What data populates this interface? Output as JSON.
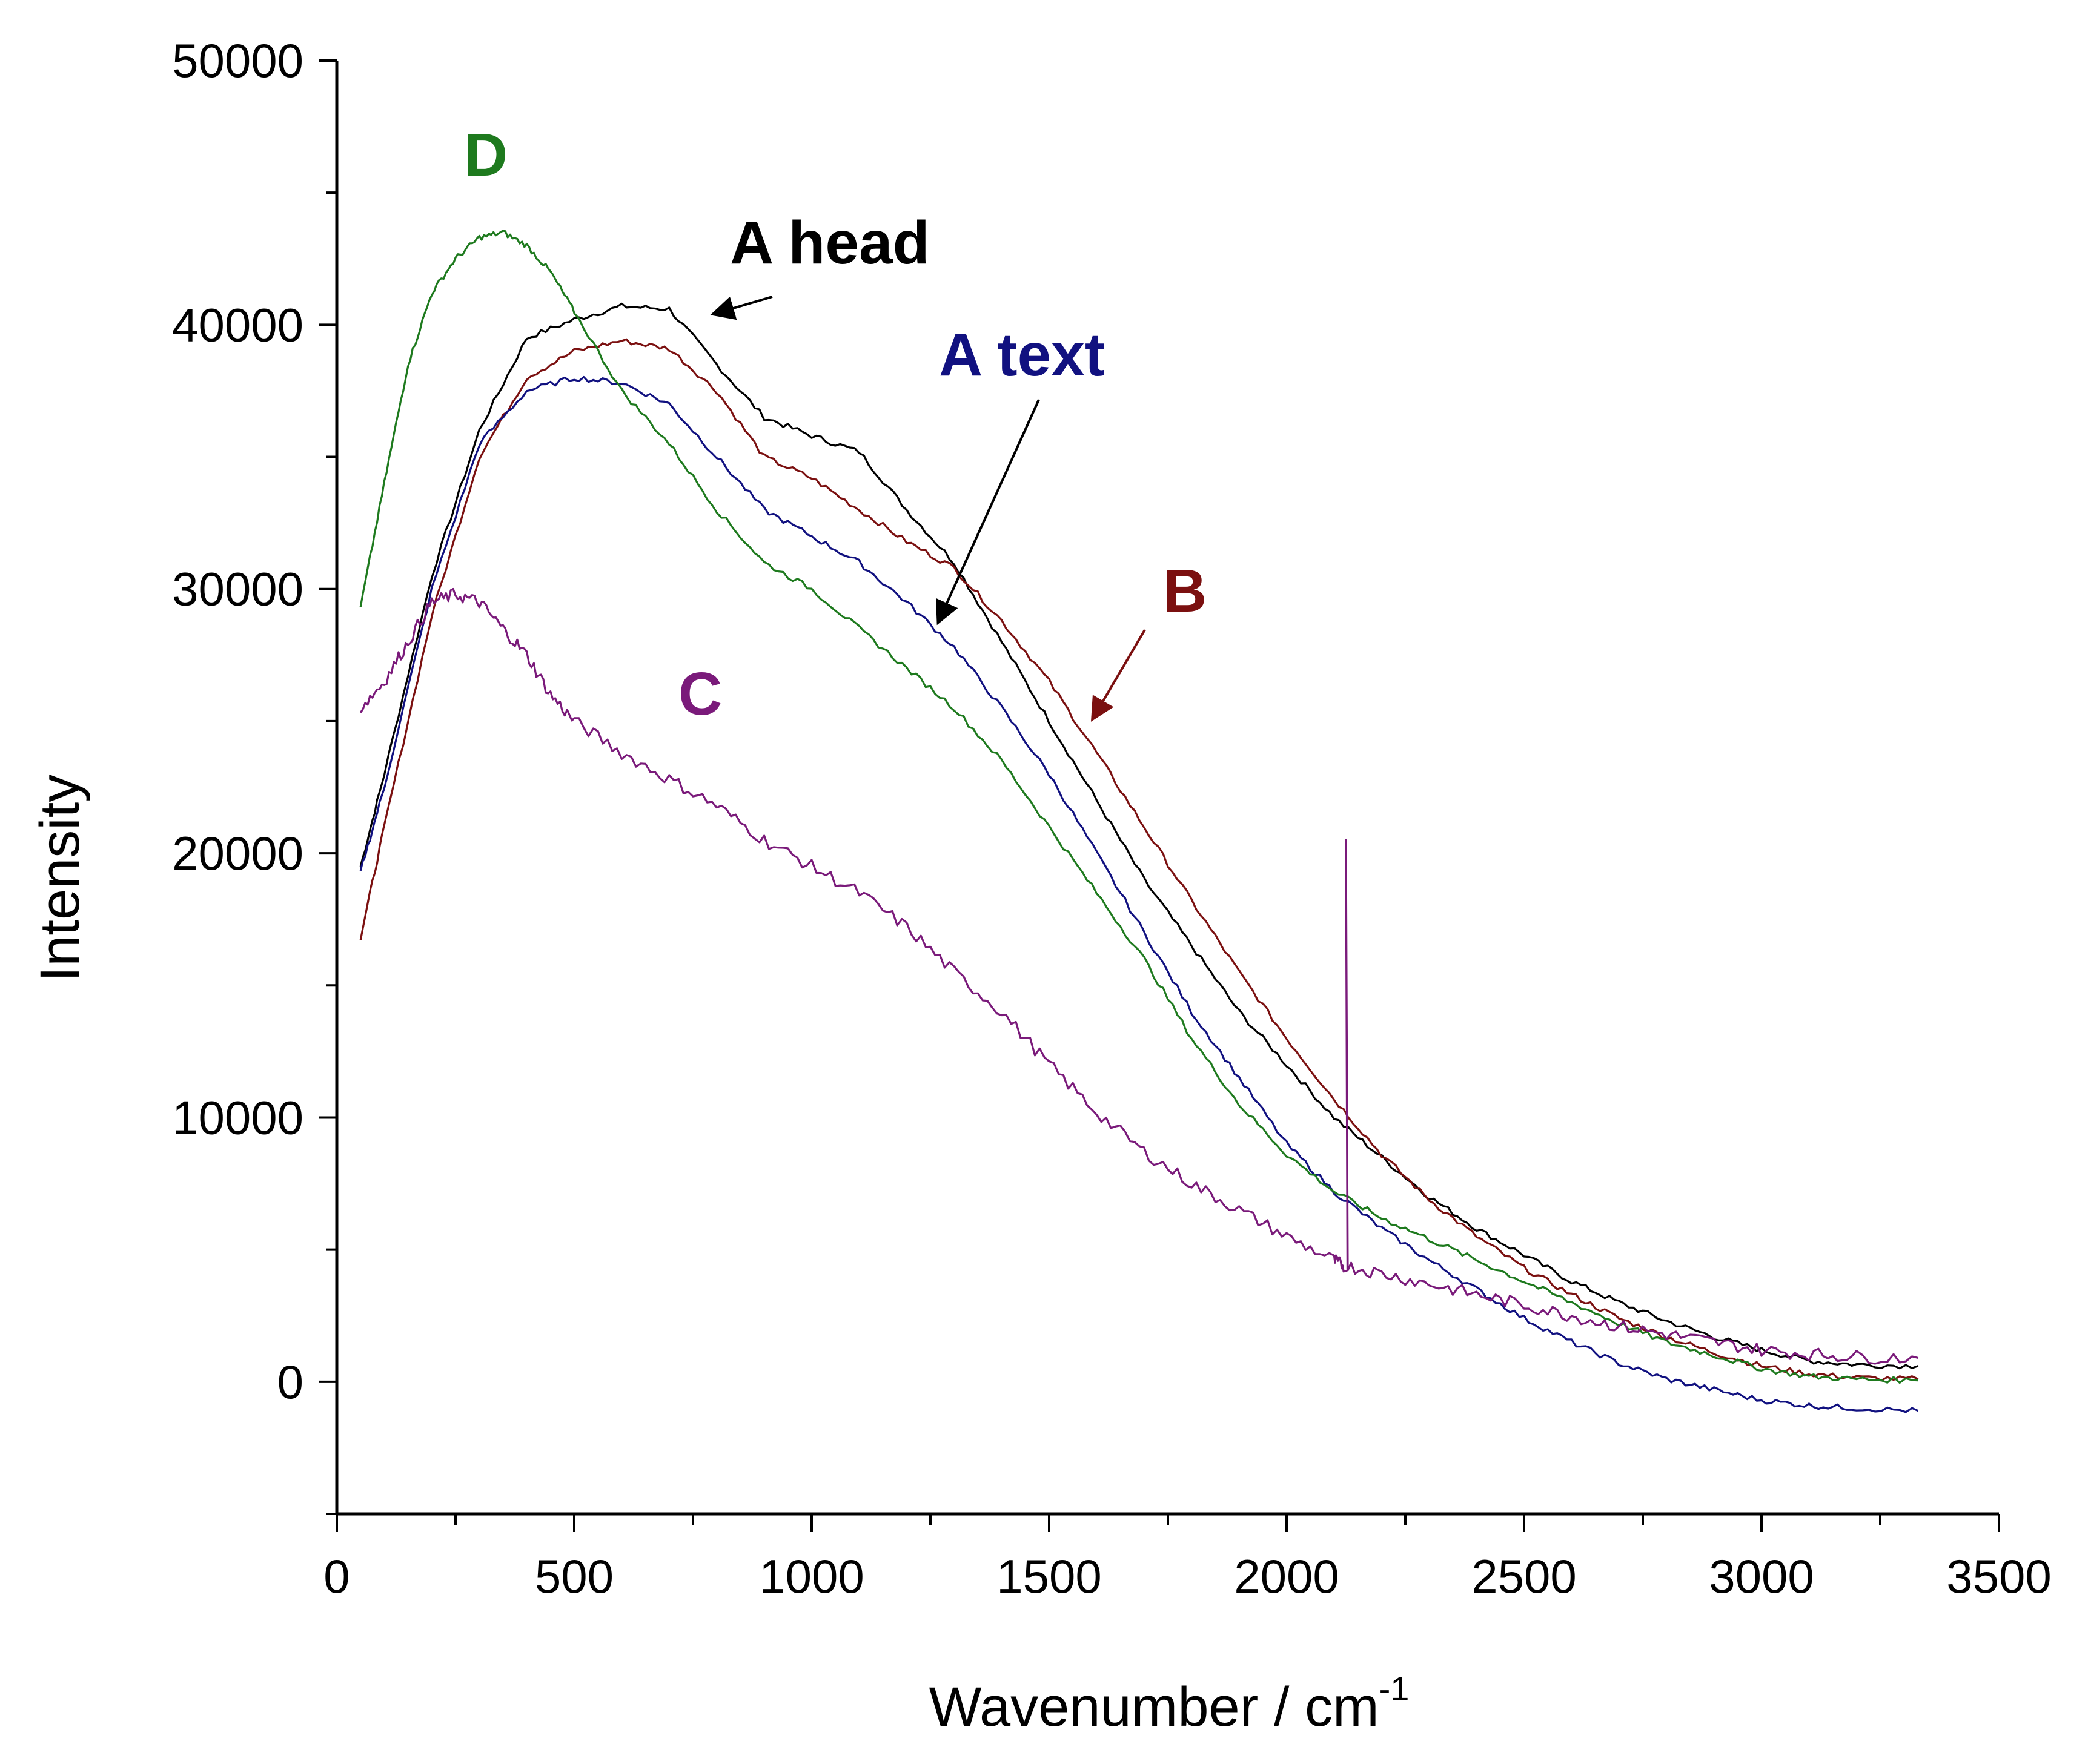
{
  "chart_data": {
    "type": "line",
    "xlabel": "Wavenumber / cm",
    "xlabel_superscript": "-1",
    "ylabel": "Intensity",
    "xlim": [
      0,
      3500
    ],
    "ylim": [
      -5000,
      50000
    ],
    "x_ticks": [
      0,
      500,
      1000,
      1500,
      2000,
      2500,
      3000,
      3500
    ],
    "x_tick_labels": [
      "0",
      "500",
      "1000",
      "1500",
      "2000",
      "2500",
      "3000",
      "3500"
    ],
    "y_ticks": [
      0,
      10000,
      20000,
      30000,
      40000,
      50000
    ],
    "y_tick_labels": [
      "0",
      "10000",
      "20000",
      "30000",
      "40000",
      "50000"
    ],
    "grid": false,
    "series": [
      {
        "name": "A head",
        "color": "#000000",
        "points": [
          [
            50,
            19500
          ],
          [
            100,
            23000
          ],
          [
            200,
            30500
          ],
          [
            300,
            36000
          ],
          [
            400,
            39500
          ],
          [
            500,
            40200
          ],
          [
            600,
            40700
          ],
          [
            700,
            40600
          ],
          [
            800,
            38500
          ],
          [
            900,
            36500
          ],
          [
            1000,
            35800
          ],
          [
            1100,
            35200
          ],
          [
            1200,
            33000
          ],
          [
            1300,
            31000
          ],
          [
            1400,
            28000
          ],
          [
            1500,
            25000
          ],
          [
            1600,
            22000
          ],
          [
            1700,
            19000
          ],
          [
            1800,
            16500
          ],
          [
            1900,
            14000
          ],
          [
            2000,
            12000
          ],
          [
            2100,
            10000
          ],
          [
            2200,
            8500
          ],
          [
            2300,
            7000
          ],
          [
            2400,
            5800
          ],
          [
            2500,
            4800
          ],
          [
            2600,
            3800
          ],
          [
            2700,
            3000
          ],
          [
            2800,
            2300
          ],
          [
            2900,
            1700
          ],
          [
            3000,
            1200
          ],
          [
            3100,
            800
          ],
          [
            3200,
            650
          ],
          [
            3330,
            600
          ]
        ]
      },
      {
        "name": "B",
        "color": "#7b1010",
        "points": [
          [
            50,
            16800
          ],
          [
            100,
            21000
          ],
          [
            200,
            29000
          ],
          [
            300,
            35000
          ],
          [
            400,
            38000
          ],
          [
            500,
            39000
          ],
          [
            600,
            39400
          ],
          [
            700,
            39100
          ],
          [
            800,
            37500
          ],
          [
            900,
            35000
          ],
          [
            1000,
            34200
          ],
          [
            1100,
            33000
          ],
          [
            1200,
            31800
          ],
          [
            1300,
            30800
          ],
          [
            1400,
            28800
          ],
          [
            1500,
            26500
          ],
          [
            1600,
            23800
          ],
          [
            1700,
            21000
          ],
          [
            1800,
            18200
          ],
          [
            1900,
            15500
          ],
          [
            2000,
            13000
          ],
          [
            2100,
            10700
          ],
          [
            2200,
            8600
          ],
          [
            2300,
            6900
          ],
          [
            2400,
            5500
          ],
          [
            2500,
            4300
          ],
          [
            2600,
            3300
          ],
          [
            2700,
            2400
          ],
          [
            2800,
            1700
          ],
          [
            2900,
            1100
          ],
          [
            3000,
            600
          ],
          [
            3100,
            300
          ],
          [
            3200,
            150
          ],
          [
            3330,
            100
          ]
        ]
      },
      {
        "name": "A text",
        "color": "#111180",
        "points": [
          [
            50,
            19300
          ],
          [
            100,
            22500
          ],
          [
            200,
            30000
          ],
          [
            300,
            35500
          ],
          [
            400,
            37500
          ],
          [
            500,
            38000
          ],
          [
            600,
            37800
          ],
          [
            700,
            37000
          ],
          [
            800,
            35000
          ],
          [
            900,
            33000
          ],
          [
            1000,
            32000
          ],
          [
            1100,
            31000
          ],
          [
            1200,
            29500
          ],
          [
            1300,
            27800
          ],
          [
            1400,
            25500
          ],
          [
            1500,
            23000
          ],
          [
            1600,
            20000
          ],
          [
            1700,
            17000
          ],
          [
            1800,
            14000
          ],
          [
            1900,
            11500
          ],
          [
            2000,
            9000
          ],
          [
            2100,
            7200
          ],
          [
            2200,
            5800
          ],
          [
            2300,
            4600
          ],
          [
            2400,
            3500
          ],
          [
            2500,
            2400
          ],
          [
            2600,
            1500
          ],
          [
            2700,
            700
          ],
          [
            2800,
            100
          ],
          [
            2900,
            -300
          ],
          [
            3000,
            -700
          ],
          [
            3100,
            -900
          ],
          [
            3200,
            -1000
          ],
          [
            3330,
            -1100
          ]
        ]
      },
      {
        "name": "D",
        "color": "#1e7a1e",
        "points": [
          [
            50,
            29300
          ],
          [
            100,
            34000
          ],
          [
            150,
            38500
          ],
          [
            200,
            41200
          ],
          [
            250,
            42500
          ],
          [
            300,
            43300
          ],
          [
            350,
            43500
          ],
          [
            400,
            43000
          ],
          [
            450,
            42000
          ],
          [
            500,
            40500
          ],
          [
            600,
            37500
          ],
          [
            700,
            35500
          ],
          [
            800,
            33000
          ],
          [
            900,
            31000
          ],
          [
            1000,
            30000
          ],
          [
            1100,
            28500
          ],
          [
            1200,
            27000
          ],
          [
            1300,
            25500
          ],
          [
            1400,
            23500
          ],
          [
            1500,
            21000
          ],
          [
            1600,
            18500
          ],
          [
            1700,
            16000
          ],
          [
            1800,
            13000
          ],
          [
            1900,
            10500
          ],
          [
            2000,
            8600
          ],
          [
            2100,
            7200
          ],
          [
            2200,
            6200
          ],
          [
            2300,
            5400
          ],
          [
            2400,
            4600
          ],
          [
            2500,
            3800
          ],
          [
            2600,
            3000
          ],
          [
            2700,
            2200
          ],
          [
            2800,
            1500
          ],
          [
            2900,
            1000
          ],
          [
            3000,
            500
          ],
          [
            3100,
            200
          ],
          [
            3200,
            100
          ],
          [
            3330,
            50
          ]
        ]
      },
      {
        "name": "C",
        "color": "#7a1a7a",
        "spike": [
          2125,
          20500
        ],
        "points": [
          [
            50,
            25500
          ],
          [
            100,
            26500
          ],
          [
            150,
            28000
          ],
          [
            200,
            29500
          ],
          [
            250,
            29800
          ],
          [
            300,
            29500
          ],
          [
            350,
            28500
          ],
          [
            400,
            27500
          ],
          [
            450,
            26000
          ],
          [
            500,
            25000
          ],
          [
            600,
            23800
          ],
          [
            700,
            22800
          ],
          [
            800,
            21800
          ],
          [
            900,
            20500
          ],
          [
            1000,
            19500
          ],
          [
            1100,
            18500
          ],
          [
            1200,
            17200
          ],
          [
            1300,
            15500
          ],
          [
            1400,
            14000
          ],
          [
            1500,
            12000
          ],
          [
            1600,
            10200
          ],
          [
            1700,
            8700
          ],
          [
            1800,
            7500
          ],
          [
            1900,
            6500
          ],
          [
            2000,
            5500
          ],
          [
            2100,
            4600
          ],
          [
            2120,
            4400
          ],
          [
            2200,
            4100
          ],
          [
            2300,
            3700
          ],
          [
            2400,
            3300
          ],
          [
            2500,
            2900
          ],
          [
            2600,
            2500
          ],
          [
            2700,
            2100
          ],
          [
            2800,
            1800
          ],
          [
            2900,
            1500
          ],
          [
            3000,
            1200
          ],
          [
            3100,
            1050
          ],
          [
            3200,
            950
          ],
          [
            3330,
            900
          ]
        ]
      }
    ],
    "annotations": [
      {
        "text": "D",
        "color": "#1e7a1e"
      },
      {
        "text": "A head",
        "color": "#000000"
      },
      {
        "text": "A text",
        "color": "#111180"
      },
      {
        "text": "B",
        "color": "#7b1010"
      },
      {
        "text": "C",
        "color": "#7a1a7a"
      }
    ]
  }
}
